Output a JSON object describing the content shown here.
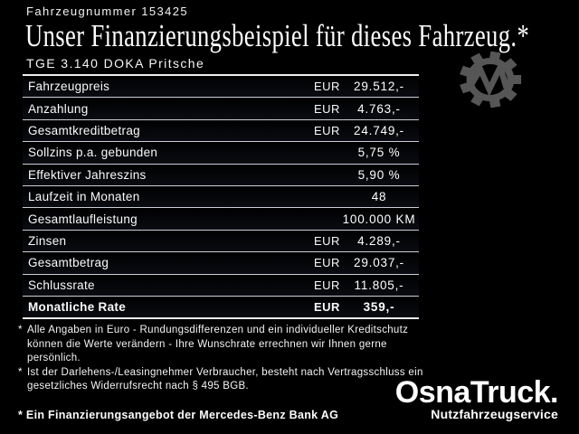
{
  "page": {
    "background": "#000000",
    "text_color": "#ffffff",
    "table_line_color": "#c9ced6",
    "table_edge_line_color": "#eceef0",
    "gear_color": "#565656"
  },
  "header": {
    "vehicle_number": "Fahrzeugnummer 153425",
    "title": "Unser Finanzierungsbeispiel für dieses Fahrzeug.*",
    "subtitle": "TGE 3.140 DOKA Pritsche"
  },
  "icons": {
    "gear_logo": "gear-m-icon"
  },
  "finance_table": {
    "rows": [
      {
        "label": "Fahrzeugpreis",
        "currency": "EUR",
        "value": "29.512,-",
        "bold": false
      },
      {
        "label": "Anzahlung",
        "currency": "EUR",
        "value": "4.763,-",
        "bold": false
      },
      {
        "label": "Gesamtkreditbetrag",
        "currency": "EUR",
        "value": "24.749,-",
        "bold": false
      },
      {
        "label": "Sollzins p.a. gebunden",
        "currency": "",
        "value": "5,75 %",
        "bold": false
      },
      {
        "label": "Effektiver Jahreszins",
        "currency": "",
        "value": "5,90 %",
        "bold": false
      },
      {
        "label": "Laufzeit in Monaten",
        "currency": "",
        "value": "48",
        "bold": false
      },
      {
        "label": "Gesamtlaufleistung",
        "currency": "",
        "value": "100.000 KM",
        "bold": false
      },
      {
        "label": "Zinsen",
        "currency": "EUR",
        "value": "4.289,-",
        "bold": false
      },
      {
        "label": "Gesamtbetrag",
        "currency": "EUR",
        "value": "29.037,-",
        "bold": false
      },
      {
        "label": "Schlussrate",
        "currency": "EUR",
        "value": "11.805,-",
        "bold": false
      },
      {
        "label": "Monatliche Rate",
        "currency": "EUR",
        "value": "359,-",
        "bold": true
      }
    ]
  },
  "footnotes": [
    {
      "marker": "*",
      "lines": [
        "Alle Angaben in Euro - Rundungsdifferenzen und ein individueller Kreditschutz",
        "können die Werte verändern - Ihre Wunschrate errechnen wir Ihnen gerne persönlich."
      ]
    },
    {
      "marker": "*",
      "lines": [
        "Ist der Darlehens-/Leasingnehmer Verbraucher, besteht nach Vertragsschluss ein",
        "gesetzliches Widerrufsrecht nach § 495 BGB."
      ]
    }
  ],
  "bank_note": "* Ein Finanzierungsangebot der Mercedes-Benz Bank AG",
  "dealer_logo": {
    "name": "OsnaTruck.",
    "tagline": "Nutzfahrzeugservice"
  }
}
